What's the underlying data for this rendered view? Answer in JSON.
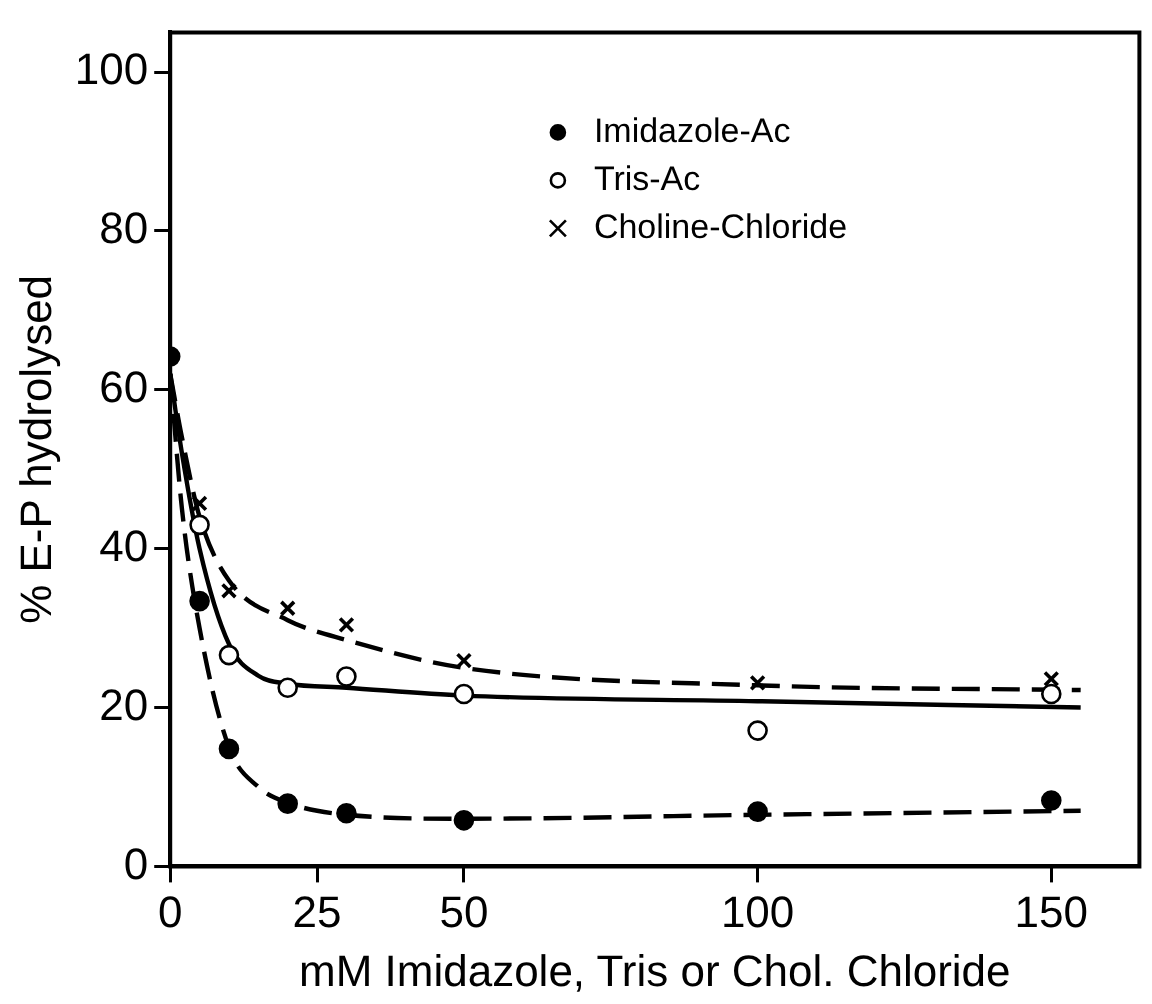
{
  "chart_data": {
    "type": "scatter",
    "xlabel": "mM Imidazole, Tris or Chol. Chloride",
    "ylabel": "% E-P hydrolysed",
    "xlim": [
      0,
      165
    ],
    "xticks": [
      0,
      25,
      50,
      100,
      150
    ],
    "ylim": [
      0,
      105
    ],
    "yticks": [
      0,
      20,
      40,
      60,
      80,
      100
    ],
    "grid": false,
    "legend": "top right",
    "series": [
      {
        "name": "Imidazole-Ac",
        "type": "scatter",
        "marker": "circle",
        "color": "#000000",
        "x": [
          0,
          5,
          10,
          20,
          30,
          50,
          100,
          150
        ],
        "values": [
          64.2,
          33.4,
          14.8,
          7.9,
          6.7,
          5.8,
          6.9,
          8.3
        ]
      },
      {
        "name": "Tris-Ac",
        "type": "scatter",
        "marker": "circle",
        "color": "#ffffff",
        "x": [
          5,
          10,
          20,
          30,
          50,
          100,
          150
        ],
        "values": [
          43,
          26.6,
          22.5,
          23.9,
          21.7,
          17.1,
          21.7
        ]
      },
      {
        "name": "Choline-Chloride",
        "type": "scatter",
        "marker": "cross",
        "color": "#000000",
        "x": [
          5,
          10,
          20,
          30,
          50,
          100,
          150
        ],
        "values": [
          45.7,
          34.7,
          32.5,
          30.4,
          25.9,
          23.1,
          23.6
        ]
      },
      {
        "type": "line",
        "marker": "none",
        "line_style": "dashed",
        "color": "#000000",
        "x": [
          0,
          2,
          5,
          10,
          15,
          20,
          30,
          50,
          100,
          155
        ],
        "values": [
          62,
          45,
          30,
          15,
          10,
          8,
          6.5,
          6,
          6.5,
          7
        ]
      },
      {
        "type": "line",
        "marker": "none",
        "line_style": "solid",
        "color": "#000000",
        "x": [
          0,
          2,
          5,
          10,
          15,
          20,
          30,
          50,
          100,
          155
        ],
        "values": [
          62,
          52,
          40,
          28,
          24,
          23,
          22.5,
          21.5,
          20.8,
          20
        ]
      },
      {
        "type": "line",
        "marker": "none",
        "line_style": "dashed",
        "color": "#000000",
        "x": [
          0,
          2,
          5,
          10,
          20,
          30,
          50,
          100,
          155
        ],
        "values": [
          62,
          54,
          44,
          36,
          31,
          28.5,
          25,
          22.8,
          22.2
        ]
      }
    ]
  }
}
